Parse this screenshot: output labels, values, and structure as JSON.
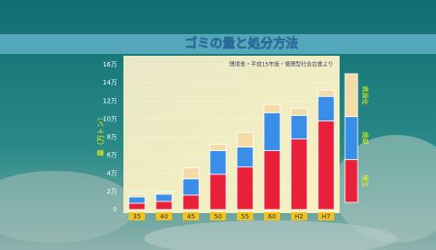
{
  "chart_data": {
    "type": "stacked_bar",
    "title": "ゴミの量と処分方法",
    "subtitle": "環境省・平成15年版・循環型社会白書より",
    "y_label": "量（万トン）",
    "categories": [
      "35",
      "40",
      "45",
      "50",
      "55",
      "60",
      "H2",
      "H7"
    ],
    "series": [
      {
        "name": "埋立",
        "color": "#e8203a",
        "values": [
          0.7,
          0.9,
          1.6,
          3.9,
          4.7,
          6.5,
          7.8,
          9.8
        ]
      },
      {
        "name": "焼却",
        "color": "#3a8ee8",
        "values": [
          0.7,
          0.8,
          1.8,
          2.6,
          2.2,
          4.2,
          2.6,
          2.7
        ]
      },
      {
        "name": "資源化",
        "color": "#f3dca8",
        "values": [
          0.3,
          0.2,
          1.2,
          0.7,
          1.6,
          0.9,
          0.8,
          0.7
        ]
      }
    ],
    "ylim": [
      0,
      16
    ],
    "yticks": [
      0,
      {
        "value": 2,
        "label": "2万"
      },
      {
        "value": 4,
        "label": "4万"
      },
      {
        "value": 6,
        "label": "6万"
      },
      {
        "value": 8,
        "label": "8万"
      },
      {
        "value": 10,
        "label": "10万"
      },
      {
        "value": 12,
        "label": "12万"
      },
      {
        "value": 14,
        "label": "14万"
      },
      {
        "value": 16,
        "label": "16万"
      }
    ],
    "grid": true
  }
}
